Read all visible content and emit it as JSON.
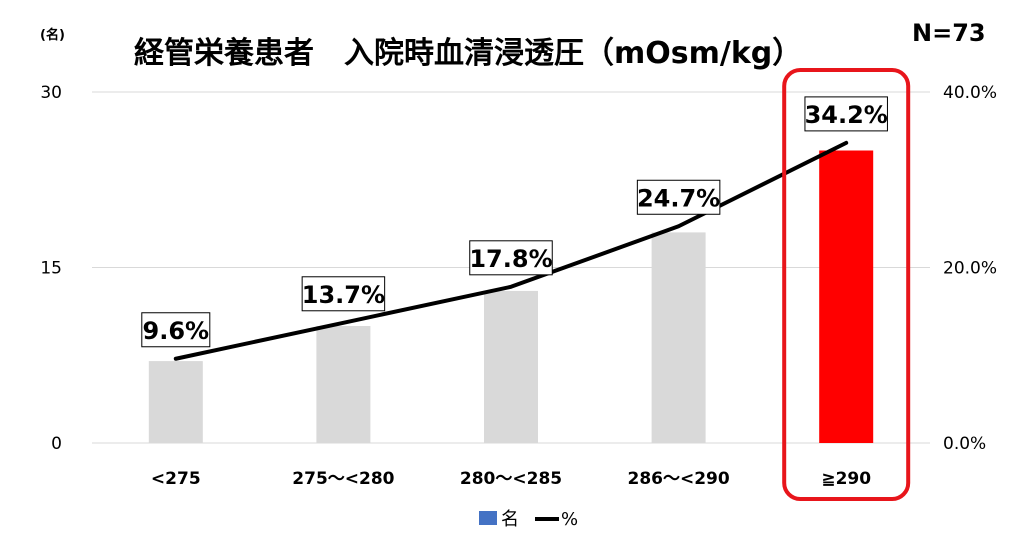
{
  "title": "経管栄養患者　入院時血清浸透圧（mOsm/kg）",
  "n_label": "N=73",
  "colors": {
    "bar_default": "#d9d9d9",
    "bar_highlight": "#ff0000",
    "line": "#000000",
    "highlight_box": "#e8151b",
    "legend_bar": "#4472c4",
    "grid": "#d9d9d9"
  },
  "chart_data": {
    "type": "bar",
    "categories": [
      "<275",
      "275～<280",
      "280～<285",
      "286～<290",
      "≧290"
    ],
    "series": [
      {
        "name": "名",
        "type": "bar",
        "axis": "left",
        "values": [
          7,
          10,
          13,
          18,
          25
        ]
      },
      {
        "name": "%",
        "type": "line",
        "axis": "right",
        "values": [
          9.6,
          13.7,
          17.8,
          24.7,
          34.2
        ]
      }
    ],
    "data_labels": [
      "9.6%",
      "13.7%",
      "17.8%",
      "24.7%",
      "34.2%"
    ],
    "highlight_index": 4,
    "y_left": {
      "unit_label": "(名)",
      "ticks": [
        "0",
        "15",
        "30"
      ],
      "range": [
        0,
        30
      ]
    },
    "y_right": {
      "ticks": [
        "0.0%",
        "20.0%",
        "40.0%"
      ],
      "range": [
        0,
        40
      ]
    },
    "grid": true,
    "legend": {
      "position": "bottom",
      "entries": [
        "名",
        "%"
      ]
    }
  }
}
